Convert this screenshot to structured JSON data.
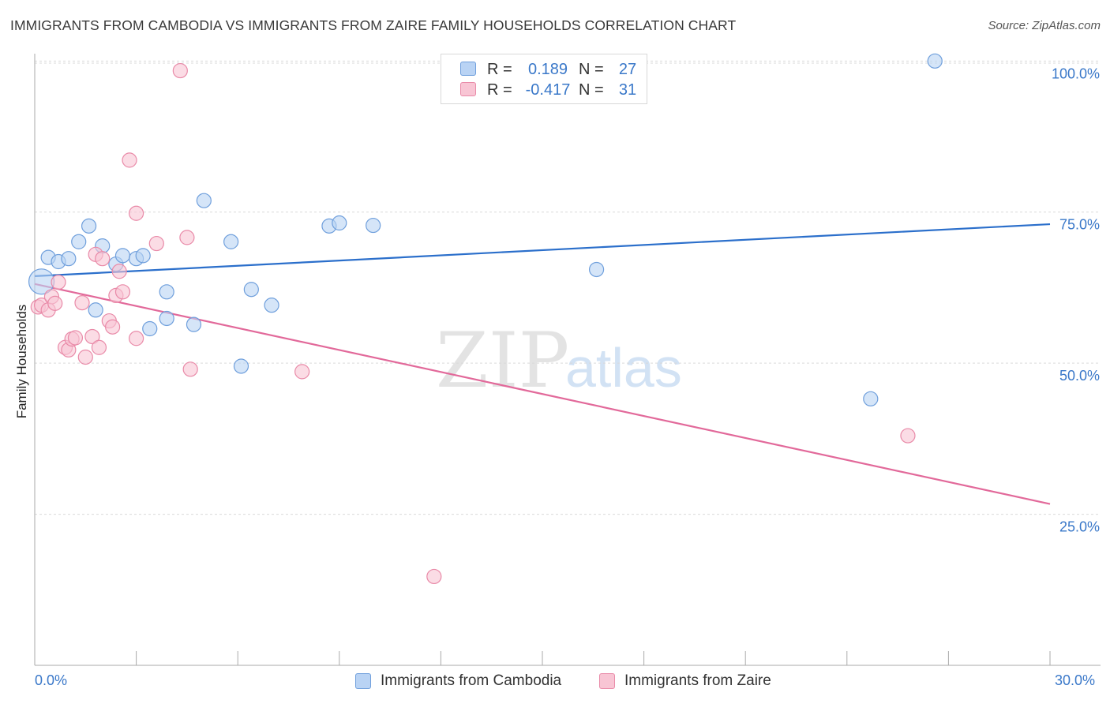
{
  "header": {
    "title": "IMMIGRANTS FROM CAMBODIA VS IMMIGRANTS FROM ZAIRE FAMILY HOUSEHOLDS CORRELATION CHART",
    "source": "Source: ZipAtlas.com"
  },
  "watermark": {
    "zip": "ZIP",
    "atlas": "atlas"
  },
  "legend": {
    "rows": [
      {
        "r_label": "R =",
        "r_value": "0.189",
        "n_label": "N =",
        "n_value": "27"
      },
      {
        "r_label": "R =",
        "r_value": "-0.417",
        "n_label": "N =",
        "n_value": "31"
      }
    ]
  },
  "bottom_legend": [
    {
      "label": "Immigrants from Cambodia"
    },
    {
      "label": "Immigrants from Zaire"
    }
  ],
  "colors": {
    "blue_fill": "#b9d3f4",
    "blue_stroke": "#6f9fdc",
    "blue_line": "#2b6fcb",
    "pink_fill": "#f8c5d4",
    "pink_stroke": "#e98aa8",
    "pink_line": "#e2699a",
    "axis_text": "#3a78c9",
    "grid": "#d9d9d9"
  },
  "chart_data": {
    "type": "scatter",
    "title": "IMMIGRANTS FROM CAMBODIA VS IMMIGRANTS FROM ZAIRE FAMILY HOUSEHOLDS CORRELATION CHART",
    "xlabel": "",
    "ylabel": "Family Households",
    "xlim": [
      0,
      30
    ],
    "ylim": [
      0,
      102
    ],
    "x_tick_labels": [
      "0.0%",
      "30.0%"
    ],
    "y_ticks": [
      25,
      50,
      75,
      100
    ],
    "y_tick_labels": [
      "25.0%",
      "50.0%",
      "75.0%",
      "100.0%"
    ],
    "grid": true,
    "series": [
      {
        "name": "Immigrants from Cambodia",
        "color": "#6f9fdc",
        "points": [
          [
            0.2,
            63.5
          ],
          [
            0.4,
            67.5
          ],
          [
            0.7,
            66.8
          ],
          [
            1.0,
            67.3
          ],
          [
            1.3,
            70.1
          ],
          [
            1.6,
            72.7
          ],
          [
            1.8,
            58.8
          ],
          [
            2.0,
            69.4
          ],
          [
            2.4,
            66.4
          ],
          [
            2.6,
            67.8
          ],
          [
            3.0,
            67.3
          ],
          [
            3.2,
            67.8
          ],
          [
            3.4,
            55.7
          ],
          [
            3.9,
            57.4
          ],
          [
            3.9,
            61.8
          ],
          [
            4.7,
            56.4
          ],
          [
            5.0,
            76.9
          ],
          [
            5.8,
            70.1
          ],
          [
            6.1,
            49.5
          ],
          [
            6.4,
            62.2
          ],
          [
            7.0,
            59.6
          ],
          [
            8.7,
            72.7
          ],
          [
            9.0,
            73.2
          ],
          [
            10.0,
            72.8
          ],
          [
            16.6,
            65.5
          ],
          [
            24.7,
            44.1
          ],
          [
            26.6,
            100.0
          ]
        ],
        "point_sizes": [
          16,
          9,
          9,
          9,
          9,
          9,
          9,
          9,
          9,
          9,
          9,
          9,
          9,
          9,
          9,
          9,
          9,
          9,
          9,
          9,
          9,
          9,
          9,
          9,
          9,
          9,
          9
        ],
        "trend": {
          "x": [
            0,
            30
          ],
          "y": [
            64.4,
            73.0
          ]
        }
      },
      {
        "name": "Immigrants from Zaire",
        "color": "#e98aa8",
        "points": [
          [
            0.1,
            59.3
          ],
          [
            0.2,
            59.6
          ],
          [
            0.4,
            58.8
          ],
          [
            0.5,
            61.0
          ],
          [
            0.6,
            59.9
          ],
          [
            0.7,
            63.4
          ],
          [
            0.9,
            52.6
          ],
          [
            1.0,
            52.2
          ],
          [
            1.1,
            54.0
          ],
          [
            1.2,
            54.2
          ],
          [
            1.4,
            60.0
          ],
          [
            1.5,
            51.0
          ],
          [
            1.7,
            54.4
          ],
          [
            1.8,
            68.0
          ],
          [
            1.9,
            52.6
          ],
          [
            2.0,
            67.3
          ],
          [
            2.2,
            57.0
          ],
          [
            2.3,
            56.0
          ],
          [
            2.4,
            61.2
          ],
          [
            2.5,
            65.2
          ],
          [
            2.6,
            61.8
          ],
          [
            2.8,
            83.6
          ],
          [
            3.0,
            54.1
          ],
          [
            3.0,
            74.8
          ],
          [
            3.6,
            69.8
          ],
          [
            4.3,
            98.4
          ],
          [
            4.5,
            70.8
          ],
          [
            4.6,
            49.0
          ],
          [
            7.9,
            48.6
          ],
          [
            11.8,
            14.7
          ],
          [
            25.8,
            38.0
          ]
        ],
        "point_sizes": [
          9,
          9,
          9,
          9,
          9,
          9,
          9,
          9,
          9,
          9,
          9,
          9,
          9,
          9,
          9,
          9,
          9,
          9,
          9,
          9,
          9,
          9,
          9,
          9,
          9,
          9,
          9,
          9,
          9,
          9,
          9
        ],
        "trend": {
          "x": [
            0,
            30
          ],
          "y": [
            63.1,
            26.7
          ]
        }
      }
    ]
  }
}
